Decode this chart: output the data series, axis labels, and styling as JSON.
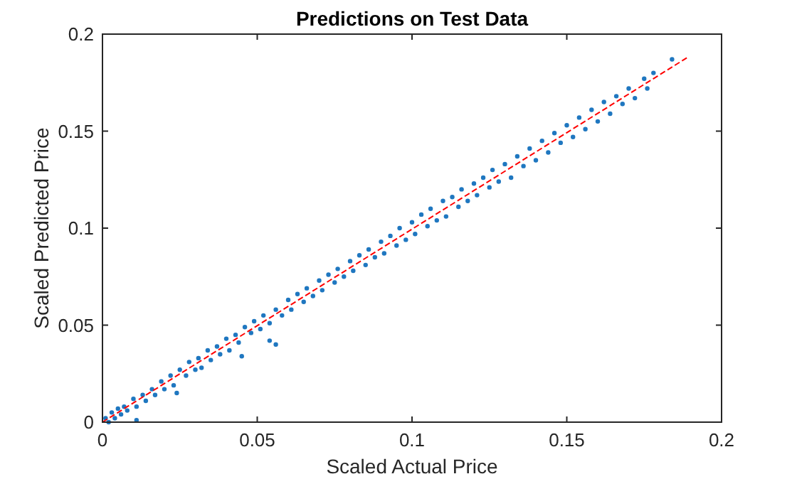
{
  "chart_data": {
    "type": "scatter",
    "title": "Predictions on Test Data",
    "xlabel": "Scaled Actual Price",
    "ylabel": "Scaled Predicted Price",
    "xlim": [
      0,
      0.2
    ],
    "ylim": [
      0,
      0.2
    ],
    "xticks": [
      0,
      0.05,
      0.1,
      0.15,
      0.2
    ],
    "yticks": [
      0,
      0.05,
      0.1,
      0.15,
      0.2
    ],
    "grid": false,
    "marker": "circle",
    "series": [
      {
        "color": "#1f77c0",
        "x": [
          0.001,
          0.002,
          0.003,
          0.004,
          0.005,
          0.006,
          0.007,
          0.008,
          0.01,
          0.011,
          0.011,
          0.013,
          0.014,
          0.016,
          0.017,
          0.019,
          0.02,
          0.022,
          0.023,
          0.024,
          0.025,
          0.027,
          0.028,
          0.03,
          0.031,
          0.032,
          0.034,
          0.035,
          0.037,
          0.038,
          0.04,
          0.041,
          0.043,
          0.044,
          0.045,
          0.046,
          0.048,
          0.049,
          0.051,
          0.052,
          0.054,
          0.054,
          0.056,
          0.056,
          0.058,
          0.06,
          0.061,
          0.063,
          0.065,
          0.066,
          0.068,
          0.07,
          0.071,
          0.073,
          0.075,
          0.076,
          0.078,
          0.08,
          0.081,
          0.083,
          0.085,
          0.086,
          0.088,
          0.09,
          0.091,
          0.093,
          0.095,
          0.096,
          0.098,
          0.1,
          0.101,
          0.103,
          0.105,
          0.106,
          0.108,
          0.11,
          0.111,
          0.113,
          0.115,
          0.116,
          0.118,
          0.12,
          0.121,
          0.123,
          0.125,
          0.126,
          0.128,
          0.13,
          0.132,
          0.134,
          0.136,
          0.138,
          0.14,
          0.142,
          0.144,
          0.146,
          0.148,
          0.15,
          0.152,
          0.154,
          0.156,
          0.158,
          0.16,
          0.162,
          0.164,
          0.166,
          0.168,
          0.17,
          0.172,
          0.175,
          0.176,
          0.178,
          0.184
        ],
        "values": [
          0.002,
          0.0,
          0.005,
          0.002,
          0.007,
          0.004,
          0.008,
          0.006,
          0.012,
          0.008,
          0.001,
          0.014,
          0.011,
          0.017,
          0.014,
          0.021,
          0.017,
          0.024,
          0.019,
          0.015,
          0.027,
          0.024,
          0.031,
          0.027,
          0.033,
          0.028,
          0.037,
          0.032,
          0.039,
          0.035,
          0.043,
          0.037,
          0.045,
          0.041,
          0.034,
          0.049,
          0.046,
          0.052,
          0.048,
          0.055,
          0.051,
          0.042,
          0.04,
          0.058,
          0.055,
          0.063,
          0.058,
          0.066,
          0.062,
          0.069,
          0.065,
          0.073,
          0.068,
          0.076,
          0.072,
          0.079,
          0.075,
          0.083,
          0.078,
          0.086,
          0.081,
          0.089,
          0.085,
          0.093,
          0.087,
          0.096,
          0.091,
          0.1,
          0.094,
          0.103,
          0.097,
          0.107,
          0.101,
          0.11,
          0.104,
          0.114,
          0.106,
          0.116,
          0.111,
          0.12,
          0.114,
          0.123,
          0.117,
          0.126,
          0.121,
          0.13,
          0.124,
          0.133,
          0.126,
          0.137,
          0.132,
          0.141,
          0.135,
          0.145,
          0.139,
          0.149,
          0.144,
          0.153,
          0.147,
          0.157,
          0.151,
          0.161,
          0.155,
          0.165,
          0.159,
          0.168,
          0.164,
          0.172,
          0.167,
          0.177,
          0.172,
          0.18,
          0.187
        ]
      },
      {
        "type": "line",
        "color": "#ff0000",
        "line_style": "dashed",
        "marker": "none",
        "x": [
          0,
          0.189
        ],
        "values": [
          0,
          0.188
        ]
      }
    ]
  }
}
